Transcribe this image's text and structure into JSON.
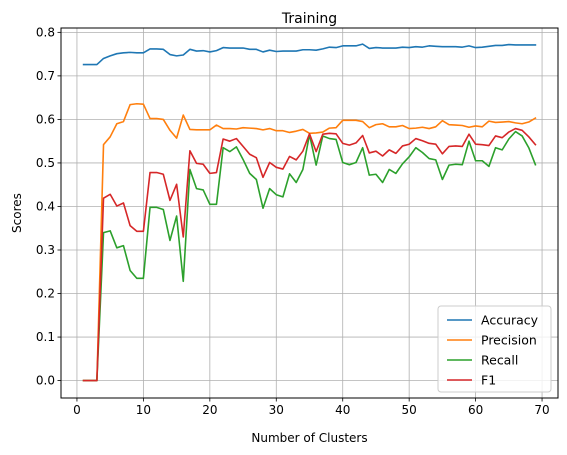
{
  "chart_data": {
    "type": "line",
    "title": "Training",
    "xlabel": "Number of Clusters",
    "ylabel": "Scores",
    "xlim": [
      -2.4,
      72.4
    ],
    "ylim": [
      -0.04,
      0.81
    ],
    "xticks": [
      0,
      10,
      20,
      30,
      40,
      50,
      60,
      70
    ],
    "yticks": [
      0.0,
      0.1,
      0.2,
      0.3,
      0.4,
      0.5,
      0.6,
      0.7,
      0.8
    ],
    "xtick_labels": [
      "0",
      "10",
      "20",
      "30",
      "40",
      "50",
      "60",
      "70"
    ],
    "ytick_labels": [
      "0.0",
      "0.1",
      "0.2",
      "0.3",
      "0.4",
      "0.5",
      "0.6",
      "0.7",
      "0.8"
    ],
    "grid": true,
    "legend_position": "lower-right",
    "x": [
      1,
      2,
      3,
      4,
      5,
      6,
      7,
      8,
      9,
      10,
      11,
      12,
      13,
      14,
      15,
      16,
      17,
      18,
      19,
      20,
      21,
      22,
      23,
      24,
      25,
      26,
      27,
      28,
      29,
      30,
      31,
      32,
      33,
      34,
      35,
      36,
      37,
      38,
      39,
      40,
      41,
      42,
      43,
      44,
      45,
      46,
      47,
      48,
      49,
      50,
      51,
      52,
      53,
      54,
      55,
      56,
      57,
      58,
      59,
      60,
      61,
      62,
      63,
      64,
      65,
      66,
      67,
      68,
      69
    ],
    "series": [
      {
        "name": "Accuracy",
        "color": "#1f77b4",
        "values": [
          0.726,
          0.726,
          0.726,
          0.74,
          0.746,
          0.751,
          0.753,
          0.754,
          0.753,
          0.753,
          0.762,
          0.762,
          0.761,
          0.749,
          0.746,
          0.748,
          0.761,
          0.757,
          0.758,
          0.755,
          0.758,
          0.765,
          0.764,
          0.764,
          0.764,
          0.761,
          0.761,
          0.755,
          0.759,
          0.756,
          0.757,
          0.757,
          0.757,
          0.76,
          0.76,
          0.759,
          0.762,
          0.766,
          0.765,
          0.769,
          0.769,
          0.769,
          0.773,
          0.763,
          0.765,
          0.764,
          0.764,
          0.764,
          0.766,
          0.765,
          0.767,
          0.766,
          0.769,
          0.768,
          0.767,
          0.767,
          0.767,
          0.766,
          0.769,
          0.765,
          0.766,
          0.768,
          0.77,
          0.77,
          0.772,
          0.771,
          0.771,
          0.771,
          0.771
        ]
      },
      {
        "name": "Precision",
        "color": "#ff7f0e",
        "values": [
          0.0,
          0.0,
          0.0,
          0.542,
          0.56,
          0.59,
          0.595,
          0.634,
          0.636,
          0.635,
          0.602,
          0.602,
          0.6,
          0.575,
          0.557,
          0.61,
          0.577,
          0.576,
          0.576,
          0.576,
          0.587,
          0.579,
          0.579,
          0.578,
          0.581,
          0.58,
          0.579,
          0.576,
          0.579,
          0.574,
          0.574,
          0.57,
          0.573,
          0.577,
          0.568,
          0.569,
          0.571,
          0.58,
          0.581,
          0.598,
          0.598,
          0.598,
          0.595,
          0.581,
          0.588,
          0.59,
          0.583,
          0.583,
          0.586,
          0.579,
          0.58,
          0.582,
          0.579,
          0.583,
          0.597,
          0.588,
          0.587,
          0.586,
          0.582,
          0.585,
          0.583,
          0.596,
          0.593,
          0.594,
          0.595,
          0.592,
          0.59,
          0.594,
          0.603
        ]
      },
      {
        "name": "Recall",
        "color": "#2ca02c",
        "values": [
          0.0,
          0.0,
          0.0,
          0.34,
          0.344,
          0.305,
          0.31,
          0.253,
          0.235,
          0.235,
          0.398,
          0.398,
          0.393,
          0.322,
          0.378,
          0.228,
          0.485,
          0.441,
          0.438,
          0.405,
          0.405,
          0.535,
          0.526,
          0.537,
          0.508,
          0.476,
          0.462,
          0.396,
          0.441,
          0.427,
          0.422,
          0.475,
          0.455,
          0.485,
          0.565,
          0.495,
          0.562,
          0.556,
          0.554,
          0.501,
          0.496,
          0.501,
          0.535,
          0.472,
          0.474,
          0.455,
          0.485,
          0.476,
          0.498,
          0.514,
          0.535,
          0.524,
          0.51,
          0.507,
          0.462,
          0.495,
          0.497,
          0.496,
          0.55,
          0.505,
          0.505,
          0.492,
          0.535,
          0.53,
          0.555,
          0.572,
          0.562,
          0.535,
          0.496
        ]
      },
      {
        "name": "F1",
        "color": "#d62728",
        "values": [
          0.0,
          0.0,
          0.0,
          0.419,
          0.428,
          0.401,
          0.408,
          0.356,
          0.343,
          0.343,
          0.478,
          0.478,
          0.474,
          0.414,
          0.451,
          0.33,
          0.528,
          0.499,
          0.497,
          0.476,
          0.478,
          0.555,
          0.55,
          0.556,
          0.538,
          0.52,
          0.512,
          0.467,
          0.501,
          0.49,
          0.486,
          0.515,
          0.507,
          0.527,
          0.567,
          0.526,
          0.566,
          0.568,
          0.567,
          0.545,
          0.541,
          0.546,
          0.563,
          0.523,
          0.527,
          0.516,
          0.53,
          0.522,
          0.539,
          0.543,
          0.556,
          0.551,
          0.545,
          0.543,
          0.521,
          0.538,
          0.539,
          0.538,
          0.566,
          0.543,
          0.542,
          0.54,
          0.562,
          0.558,
          0.571,
          0.579,
          0.575,
          0.56,
          0.542
        ]
      }
    ]
  }
}
